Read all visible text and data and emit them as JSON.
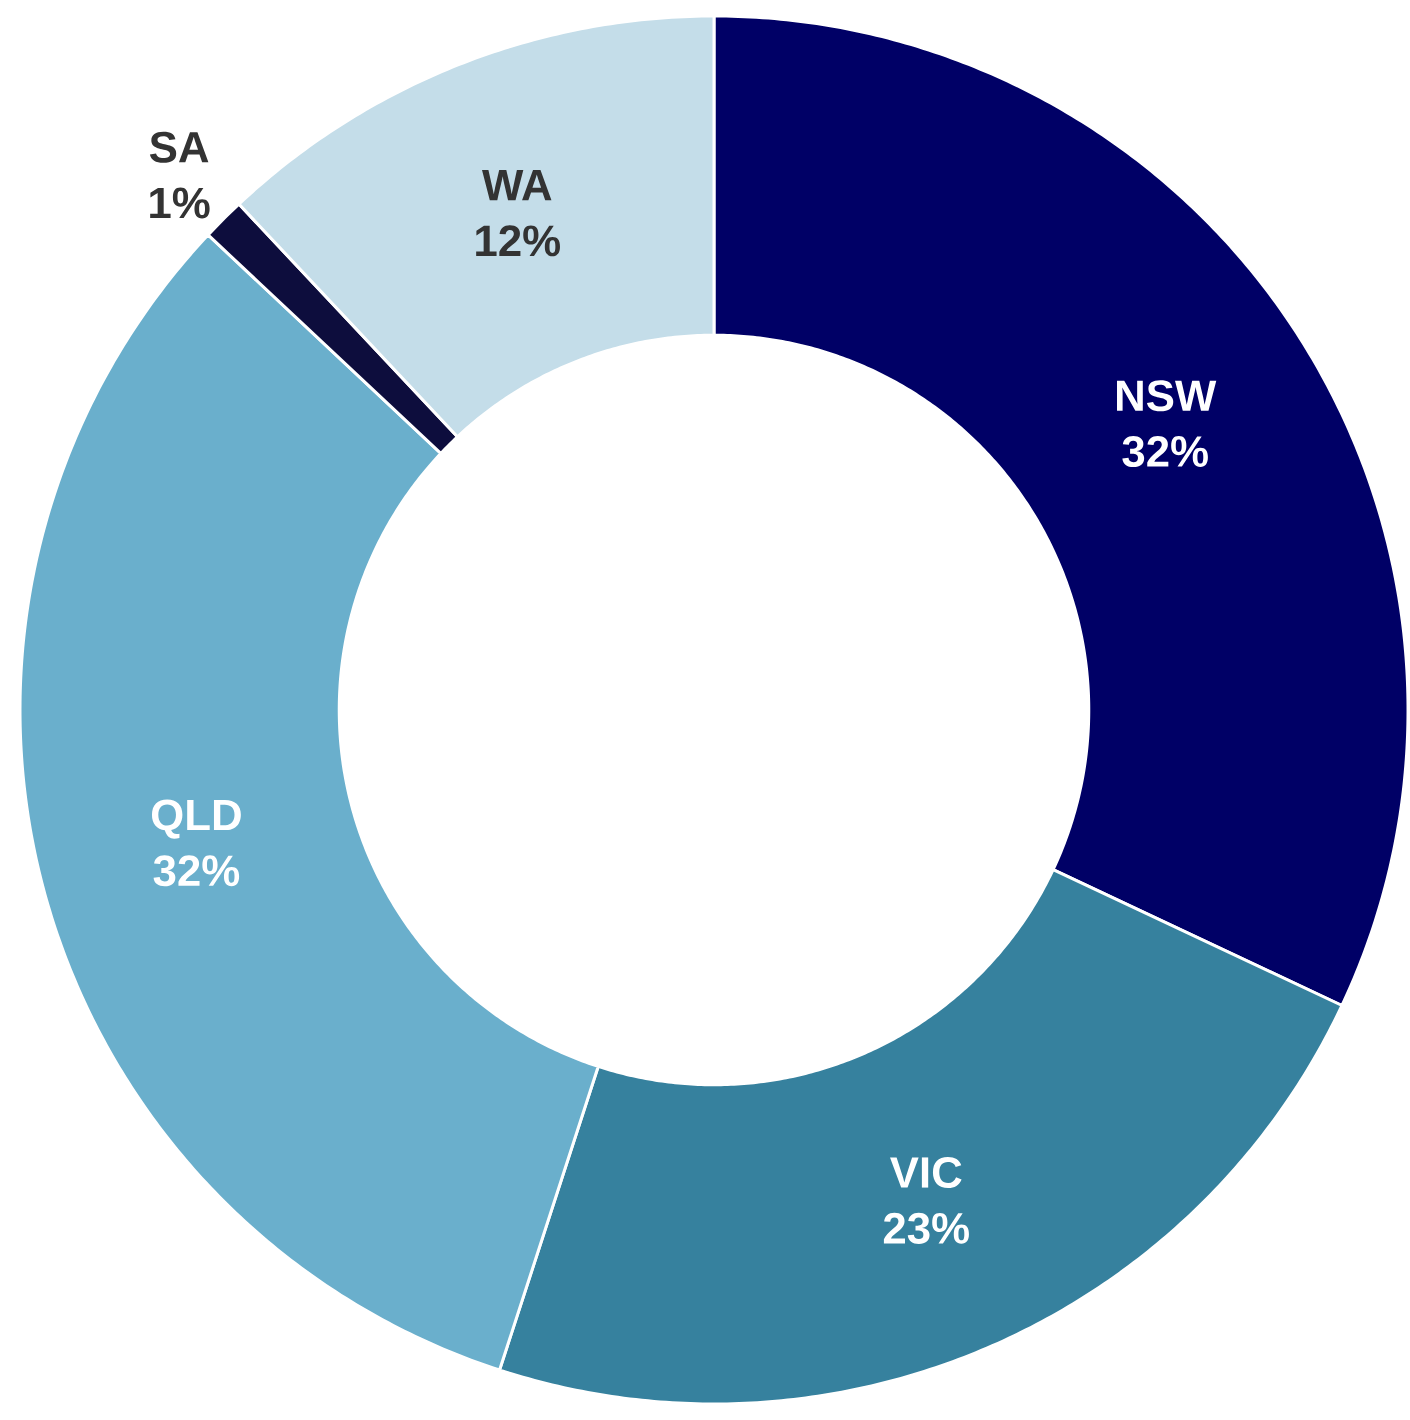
{
  "chart_data": {
    "type": "donut",
    "categories": [
      "NSW",
      "VIC",
      "QLD",
      "SA",
      "WA"
    ],
    "values": [
      32,
      23,
      32,
      1,
      12
    ],
    "colors": [
      "#000066",
      "#36819e",
      "#6aafcc",
      "#0d0d3d",
      "#c4dde9"
    ],
    "value_labels": [
      "32%",
      "23%",
      "32%",
      "1%",
      "12%"
    ]
  }
}
